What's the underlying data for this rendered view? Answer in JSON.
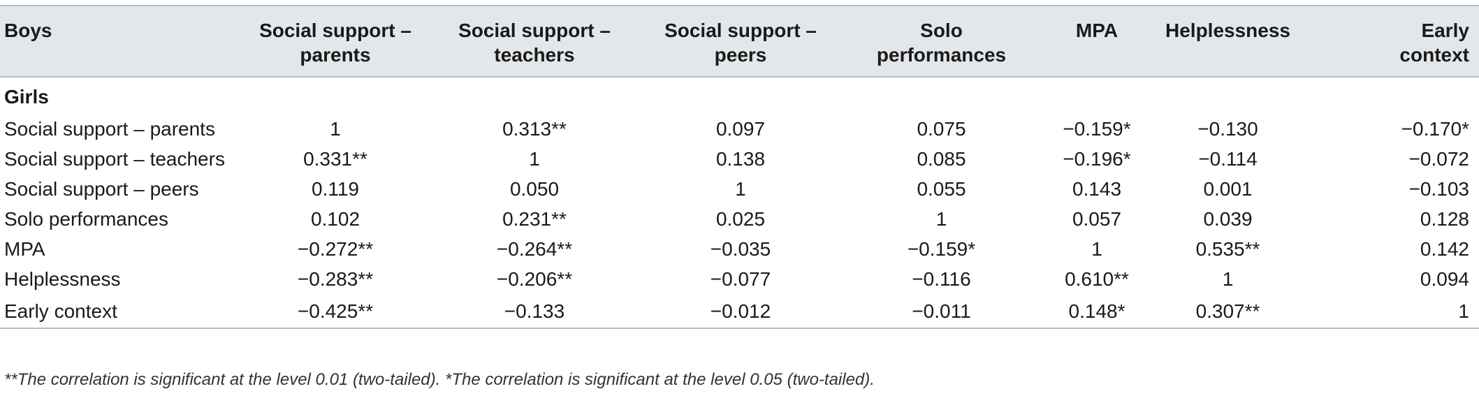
{
  "table": {
    "corner_label": "Boys",
    "columns": [
      [
        "Social support –",
        "parents"
      ],
      [
        "Social support –",
        "teachers"
      ],
      [
        "Social support –",
        "peers"
      ],
      [
        "Solo",
        "performances"
      ],
      [
        "MPA"
      ],
      [
        "Helplessness"
      ],
      [
        "Early",
        "context"
      ]
    ],
    "subheader": "Girls",
    "rows": [
      {
        "label": "Social support – parents",
        "values": [
          "1",
          "0.313**",
          "0.097",
          "0.075",
          "−0.159*",
          "−0.130",
          "−0.170*"
        ]
      },
      {
        "label": "Social support – teachers",
        "values": [
          "0.331**",
          "1",
          "0.138",
          "0.085",
          "−0.196*",
          "−0.114",
          "−0.072"
        ]
      },
      {
        "label": "Social support – peers",
        "values": [
          "0.119",
          "0.050",
          "1",
          "0.055",
          "0.143",
          "0.001",
          "−0.103"
        ]
      },
      {
        "label": "Solo performances",
        "values": [
          "0.102",
          "0.231**",
          "0.025",
          "1",
          "0.057",
          "0.039",
          "0.128"
        ]
      },
      {
        "label": "MPA",
        "values": [
          "−0.272**",
          "−0.264**",
          "−0.035",
          "−0.159*",
          "1",
          "0.535**",
          "0.142"
        ]
      },
      {
        "label": "Helplessness",
        "values": [
          "−0.283**",
          "−0.206**",
          "−0.077",
          "−0.116",
          "0.610**",
          "1",
          "0.094"
        ]
      },
      {
        "label": "Early context",
        "values": [
          "−0.425**",
          "−0.133",
          "−0.012",
          "−0.011",
          "0.148*",
          "0.307**",
          "1"
        ]
      }
    ]
  },
  "footnote": "**The correlation is significant at the level 0.01 (two-tailed). *The correlation is significant at the level 0.05 (two-tailed)."
}
